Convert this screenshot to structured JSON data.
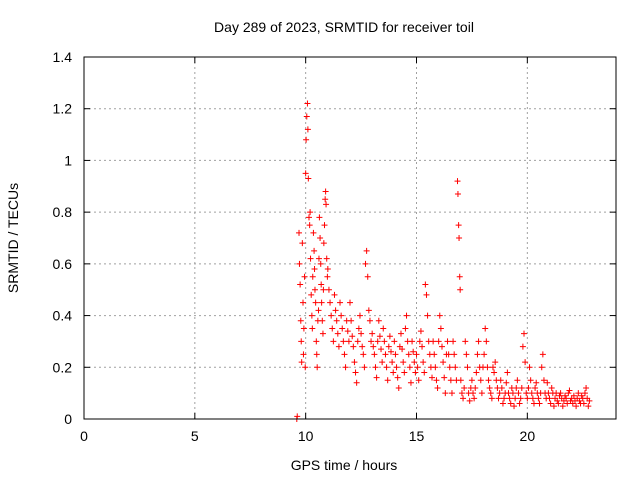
{
  "chart_data": {
    "type": "scatter",
    "title": "Day 289 of 2023, SRMTID for receiver toil",
    "xlabel": "GPS time / hours",
    "ylabel": "SRMTID / TECUs",
    "xlim": [
      0,
      24
    ],
    "ylim": [
      0,
      1.4
    ],
    "xticks": [
      0,
      5,
      10,
      15,
      20
    ],
    "yticks": [
      0,
      0.2,
      0.4,
      0.6,
      0.8,
      1,
      1.2,
      1.4
    ],
    "xtick_labels": [
      "0",
      "5",
      "10",
      "15",
      "20"
    ],
    "ytick_labels": [
      "0",
      "0.2",
      "0.4",
      "0.6",
      "0.8",
      "1",
      "1.2",
      "1.4"
    ],
    "grid": true,
    "marker": "+",
    "color": "#ff0000",
    "series": [
      {
        "name": "toil",
        "points": [
          [
            9.6,
            0.0
          ],
          [
            9.62,
            0.01
          ],
          [
            9.7,
            0.72
          ],
          [
            9.72,
            0.6
          ],
          [
            9.75,
            0.52
          ],
          [
            9.78,
            0.38
          ],
          [
            9.8,
            0.3
          ],
          [
            9.82,
            0.22
          ],
          [
            9.85,
            0.68
          ],
          [
            9.88,
            0.45
          ],
          [
            9.9,
            0.25
          ],
          [
            9.92,
            0.35
          ],
          [
            9.95,
            0.55
          ],
          [
            9.98,
            0.2
          ],
          [
            10.0,
            0.95
          ],
          [
            10.02,
            1.08
          ],
          [
            10.05,
            1.17
          ],
          [
            10.08,
            1.22
          ],
          [
            10.1,
            1.12
          ],
          [
            10.12,
            0.93
          ],
          [
            10.15,
            0.78
          ],
          [
            10.18,
            0.75
          ],
          [
            10.2,
            0.8
          ],
          [
            10.22,
            0.62
          ],
          [
            10.25,
            0.48
          ],
          [
            10.28,
            0.4
          ],
          [
            10.3,
            0.35
          ],
          [
            10.32,
            0.55
          ],
          [
            10.35,
            0.72
          ],
          [
            10.38,
            0.65
          ],
          [
            10.4,
            0.58
          ],
          [
            10.42,
            0.5
          ],
          [
            10.45,
            0.45
          ],
          [
            10.48,
            0.3
          ],
          [
            10.5,
            0.25
          ],
          [
            10.52,
            0.2
          ],
          [
            10.55,
            0.38
          ],
          [
            10.58,
            0.42
          ],
          [
            10.6,
            0.62
          ],
          [
            10.62,
            0.78
          ],
          [
            10.65,
            0.7
          ],
          [
            10.68,
            0.6
          ],
          [
            10.7,
            0.52
          ],
          [
            10.72,
            0.45
          ],
          [
            10.75,
            0.38
          ],
          [
            10.78,
            0.33
          ],
          [
            10.8,
            0.5
          ],
          [
            10.82,
            0.68
          ],
          [
            10.85,
            0.75
          ],
          [
            10.88,
            0.85
          ],
          [
            10.9,
            0.88
          ],
          [
            10.92,
            0.83
          ],
          [
            10.95,
            0.62
          ],
          [
            10.98,
            0.55
          ],
          [
            11.0,
            0.58
          ],
          [
            11.05,
            0.5
          ],
          [
            11.1,
            0.45
          ],
          [
            11.15,
            0.4
          ],
          [
            11.2,
            0.35
          ],
          [
            11.25,
            0.3
          ],
          [
            11.3,
            0.48
          ],
          [
            11.35,
            0.42
          ],
          [
            11.4,
            0.38
          ],
          [
            11.45,
            0.33
          ],
          [
            11.5,
            0.28
          ],
          [
            11.55,
            0.45
          ],
          [
            11.6,
            0.4
          ],
          [
            11.65,
            0.35
          ],
          [
            11.7,
            0.3
          ],
          [
            11.75,
            0.25
          ],
          [
            11.8,
            0.2
          ],
          [
            11.85,
            0.38
          ],
          [
            11.9,
            0.34
          ],
          [
            11.95,
            0.3
          ],
          [
            12.0,
            0.45
          ],
          [
            12.05,
            0.38
          ],
          [
            12.1,
            0.32
          ],
          [
            12.15,
            0.28
          ],
          [
            12.2,
            0.22
          ],
          [
            12.25,
            0.18
          ],
          [
            12.3,
            0.14
          ],
          [
            12.35,
            0.3
          ],
          [
            12.4,
            0.35
          ],
          [
            12.45,
            0.4
          ],
          [
            12.5,
            0.33
          ],
          [
            12.55,
            0.28
          ],
          [
            12.6,
            0.25
          ],
          [
            12.65,
            0.2
          ],
          [
            12.7,
            0.6
          ],
          [
            12.75,
            0.65
          ],
          [
            12.8,
            0.55
          ],
          [
            12.85,
            0.42
          ],
          [
            12.9,
            0.38
          ],
          [
            12.95,
            0.3
          ],
          [
            13.0,
            0.33
          ],
          [
            13.05,
            0.28
          ],
          [
            13.1,
            0.25
          ],
          [
            13.15,
            0.2
          ],
          [
            13.2,
            0.16
          ],
          [
            13.25,
            0.3
          ],
          [
            13.3,
            0.38
          ],
          [
            13.35,
            0.32
          ],
          [
            13.4,
            0.27
          ],
          [
            13.45,
            0.22
          ],
          [
            13.5,
            0.35
          ],
          [
            13.55,
            0.3
          ],
          [
            13.6,
            0.25
          ],
          [
            13.65,
            0.2
          ],
          [
            13.7,
            0.15
          ],
          [
            13.75,
            0.28
          ],
          [
            13.8,
            0.32
          ],
          [
            13.85,
            0.26
          ],
          [
            13.9,
            0.22
          ],
          [
            13.95,
            0.18
          ],
          [
            14.0,
            0.3
          ],
          [
            14.05,
            0.25
          ],
          [
            14.1,
            0.2
          ],
          [
            14.15,
            0.16
          ],
          [
            14.2,
            0.12
          ],
          [
            14.25,
            0.28
          ],
          [
            14.3,
            0.33
          ],
          [
            14.35,
            0.27
          ],
          [
            14.4,
            0.22
          ],
          [
            14.45,
            0.18
          ],
          [
            14.5,
            0.35
          ],
          [
            14.55,
            0.4
          ],
          [
            14.6,
            0.3
          ],
          [
            14.65,
            0.25
          ],
          [
            14.7,
            0.2
          ],
          [
            14.75,
            0.14
          ],
          [
            14.8,
            0.3
          ],
          [
            14.85,
            0.26
          ],
          [
            14.9,
            0.22
          ],
          [
            14.95,
            0.18
          ],
          [
            15.0,
            0.25
          ],
          [
            15.05,
            0.2
          ],
          [
            15.1,
            0.15
          ],
          [
            15.15,
            0.3
          ],
          [
            15.2,
            0.34
          ],
          [
            15.25,
            0.28
          ],
          [
            15.3,
            0.22
          ],
          [
            15.35,
            0.18
          ],
          [
            15.4,
            0.52
          ],
          [
            15.45,
            0.48
          ],
          [
            15.5,
            0.4
          ],
          [
            15.55,
            0.3
          ],
          [
            15.6,
            0.25
          ],
          [
            15.65,
            0.2
          ],
          [
            15.7,
            0.16
          ],
          [
            15.75,
            0.3
          ],
          [
            15.8,
            0.25
          ],
          [
            15.85,
            0.2
          ],
          [
            15.9,
            0.15
          ],
          [
            15.95,
            0.12
          ],
          [
            16.0,
            0.3
          ],
          [
            16.05,
            0.4
          ],
          [
            16.1,
            0.35
          ],
          [
            16.15,
            0.28
          ],
          [
            16.2,
            0.22
          ],
          [
            16.25,
            0.16
          ],
          [
            16.3,
            0.1
          ],
          [
            16.35,
            0.25
          ],
          [
            16.4,
            0.3
          ],
          [
            16.45,
            0.25
          ],
          [
            16.5,
            0.2
          ],
          [
            16.55,
            0.15
          ],
          [
            16.6,
            0.1
          ],
          [
            16.65,
            0.3
          ],
          [
            16.7,
            0.25
          ],
          [
            16.75,
            0.2
          ],
          [
            16.8,
            0.15
          ],
          [
            16.85,
            0.92
          ],
          [
            16.87,
            0.87
          ],
          [
            16.9,
            0.75
          ],
          [
            16.92,
            0.7
          ],
          [
            16.95,
            0.55
          ],
          [
            16.97,
            0.5
          ],
          [
            17.0,
            0.15
          ],
          [
            17.05,
            0.1
          ],
          [
            17.1,
            0.08
          ],
          [
            17.15,
            0.12
          ],
          [
            17.2,
            0.3
          ],
          [
            17.25,
            0.25
          ],
          [
            17.3,
            0.2
          ],
          [
            17.35,
            0.1
          ],
          [
            17.4,
            0.07
          ],
          [
            17.45,
            0.12
          ],
          [
            17.5,
            0.15
          ],
          [
            17.55,
            0.1
          ],
          [
            17.6,
            0.08
          ],
          [
            17.65,
            0.12
          ],
          [
            17.7,
            0.18
          ],
          [
            17.75,
            0.25
          ],
          [
            17.8,
            0.3
          ],
          [
            17.85,
            0.2
          ],
          [
            17.9,
            0.15
          ],
          [
            17.95,
            0.1
          ],
          [
            18.0,
            0.2
          ],
          [
            18.05,
            0.25
          ],
          [
            18.1,
            0.35
          ],
          [
            18.15,
            0.3
          ],
          [
            18.2,
            0.2
          ],
          [
            18.25,
            0.15
          ],
          [
            18.3,
            0.12
          ],
          [
            18.35,
            0.1
          ],
          [
            18.4,
            0.08
          ],
          [
            18.45,
            0.2
          ],
          [
            18.5,
            0.18
          ],
          [
            18.55,
            0.22
          ],
          [
            18.6,
            0.15
          ],
          [
            18.65,
            0.12
          ],
          [
            18.7,
            0.08
          ],
          [
            18.75,
            0.1
          ],
          [
            18.8,
            0.15
          ],
          [
            18.85,
            0.12
          ],
          [
            18.9,
            0.06
          ],
          [
            18.95,
            0.08
          ],
          [
            19.0,
            0.1
          ],
          [
            19.05,
            0.14
          ],
          [
            19.1,
            0.18
          ],
          [
            19.15,
            0.1
          ],
          [
            19.2,
            0.08
          ],
          [
            19.25,
            0.06
          ],
          [
            19.3,
            0.12
          ],
          [
            19.35,
            0.1
          ],
          [
            19.4,
            0.05
          ],
          [
            19.45,
            0.08
          ],
          [
            19.5,
            0.12
          ],
          [
            19.55,
            0.15
          ],
          [
            19.6,
            0.1
          ],
          [
            19.65,
            0.06
          ],
          [
            19.7,
            0.08
          ],
          [
            19.75,
            0.12
          ],
          [
            19.8,
            0.28
          ],
          [
            19.85,
            0.33
          ],
          [
            19.9,
            0.22
          ],
          [
            19.95,
            0.1
          ],
          [
            20.0,
            0.08
          ],
          [
            20.05,
            0.12
          ],
          [
            20.1,
            0.2
          ],
          [
            20.15,
            0.15
          ],
          [
            20.2,
            0.1
          ],
          [
            20.25,
            0.08
          ],
          [
            20.3,
            0.06
          ],
          [
            20.35,
            0.12
          ],
          [
            20.4,
            0.14
          ],
          [
            20.45,
            0.1
          ],
          [
            20.5,
            0.08
          ],
          [
            20.55,
            0.06
          ],
          [
            20.6,
            0.1
          ],
          [
            20.65,
            0.2
          ],
          [
            20.7,
            0.25
          ],
          [
            20.75,
            0.15
          ],
          [
            20.8,
            0.1
          ],
          [
            20.85,
            0.08
          ],
          [
            20.9,
            0.14
          ],
          [
            20.95,
            0.1
          ],
          [
            21.0,
            0.08
          ],
          [
            21.05,
            0.06
          ],
          [
            21.1,
            0.12
          ],
          [
            21.15,
            0.1
          ],
          [
            21.2,
            0.05
          ],
          [
            21.25,
            0.08
          ],
          [
            21.3,
            0.1
          ],
          [
            21.35,
            0.07
          ],
          [
            21.4,
            0.06
          ],
          [
            21.45,
            0.09
          ],
          [
            21.5,
            0.1
          ],
          [
            21.55,
            0.08
          ],
          [
            21.6,
            0.05
          ],
          [
            21.65,
            0.07
          ],
          [
            21.7,
            0.09
          ],
          [
            21.75,
            0.08
          ],
          [
            21.8,
            0.06
          ],
          [
            21.85,
            0.1
          ],
          [
            21.9,
            0.11
          ],
          [
            21.95,
            0.07
          ],
          [
            22.0,
            0.08
          ],
          [
            22.05,
            0.06
          ],
          [
            22.1,
            0.09
          ],
          [
            22.15,
            0.07
          ],
          [
            22.2,
            0.05
          ],
          [
            22.25,
            0.08
          ],
          [
            22.3,
            0.1
          ],
          [
            22.35,
            0.07
          ],
          [
            22.4,
            0.06
          ],
          [
            22.45,
            0.09
          ],
          [
            22.5,
            0.08
          ],
          [
            22.55,
            0.06
          ],
          [
            22.6,
            0.1
          ],
          [
            22.65,
            0.12
          ],
          [
            22.7,
            0.08
          ],
          [
            22.75,
            0.05
          ],
          [
            22.8,
            0.07
          ]
        ]
      }
    ]
  }
}
